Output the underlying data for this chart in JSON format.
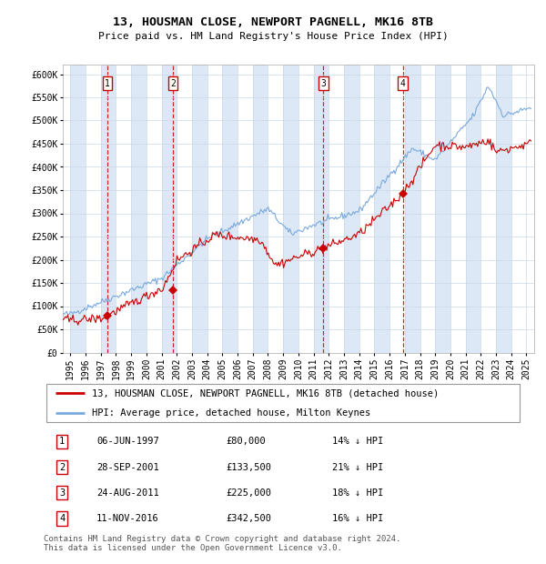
{
  "title": "13, HOUSMAN CLOSE, NEWPORT PAGNELL, MK16 8TB",
  "subtitle": "Price paid vs. HM Land Registry's House Price Index (HPI)",
  "xlim": [
    1994.5,
    2025.5
  ],
  "ylim": [
    0,
    620000
  ],
  "yticks": [
    0,
    50000,
    100000,
    150000,
    200000,
    250000,
    300000,
    350000,
    400000,
    450000,
    500000,
    550000,
    600000
  ],
  "ytick_labels": [
    "£0",
    "£50K",
    "£100K",
    "£150K",
    "£200K",
    "£250K",
    "£300K",
    "£350K",
    "£400K",
    "£450K",
    "£500K",
    "£550K",
    "£600K"
  ],
  "xticks": [
    1995,
    1996,
    1997,
    1998,
    1999,
    2000,
    2001,
    2002,
    2003,
    2004,
    2005,
    2006,
    2007,
    2008,
    2009,
    2010,
    2011,
    2012,
    2013,
    2014,
    2015,
    2016,
    2017,
    2018,
    2019,
    2020,
    2021,
    2022,
    2023,
    2024,
    2025
  ],
  "sale_dates": [
    1997.44,
    2001.74,
    2011.65,
    2016.87
  ],
  "sale_prices": [
    80000,
    133500,
    225000,
    342500
  ],
  "sale_labels": [
    "1",
    "2",
    "3",
    "4"
  ],
  "vline_color": "#cc0000",
  "sale_dot_color": "#cc0000",
  "hpi_line_color": "#7aaadd",
  "price_line_color": "#cc0000",
  "bg_shade_color": "#dce8f5",
  "grid_color": "#c8d8e8",
  "legend_line1": "13, HOUSMAN CLOSE, NEWPORT PAGNELL, MK16 8TB (detached house)",
  "legend_line2": "HPI: Average price, detached house, Milton Keynes",
  "table_rows": [
    [
      "1",
      "06-JUN-1997",
      "£80,000",
      "14% ↓ HPI"
    ],
    [
      "2",
      "28-SEP-2001",
      "£133,500",
      "21% ↓ HPI"
    ],
    [
      "3",
      "24-AUG-2011",
      "£225,000",
      "18% ↓ HPI"
    ],
    [
      "4",
      "11-NOV-2016",
      "£342,500",
      "16% ↓ HPI"
    ]
  ],
  "footer": "Contains HM Land Registry data © Crown copyright and database right 2024.\nThis data is licensed under the Open Government Licence v3.0.",
  "title_fontsize": 9.5,
  "subtitle_fontsize": 8.0,
  "tick_fontsize": 7.0,
  "legend_fontsize": 7.5,
  "table_fontsize": 7.5,
  "footer_fontsize": 6.5
}
